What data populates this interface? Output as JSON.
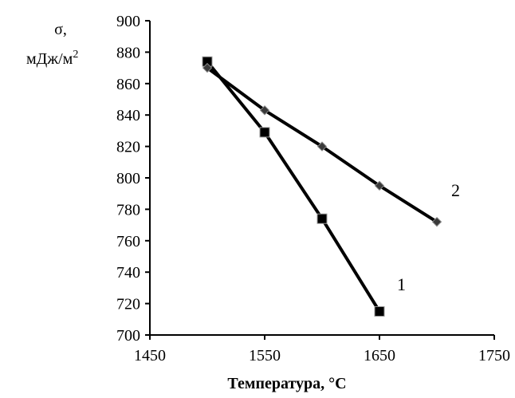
{
  "chart_data": {
    "type": "line",
    "ylabel_line1": "σ,",
    "ylabel_line2": "мДж/м",
    "ylabel_sup": "2",
    "xlabel": "Температура, °C",
    "xlim": [
      1450,
      1750
    ],
    "ylim": [
      700,
      900
    ],
    "x_ticks": [
      1450,
      1550,
      1650,
      1750
    ],
    "y_ticks": [
      700,
      720,
      740,
      760,
      780,
      800,
      820,
      840,
      860,
      880,
      900
    ],
    "grid": false,
    "series": [
      {
        "name": "1",
        "marker": "square",
        "color": "#000000",
        "x": [
          1500,
          1550,
          1600,
          1650
        ],
        "y": [
          874,
          829,
          774,
          715
        ]
      },
      {
        "name": "2",
        "marker": "diamond",
        "color": "#000000",
        "x": [
          1500,
          1550,
          1600,
          1650,
          1700
        ],
        "y": [
          870,
          843,
          820,
          795,
          772
        ]
      }
    ]
  }
}
